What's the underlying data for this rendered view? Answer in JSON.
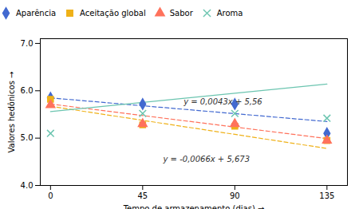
{
  "chart_data": {
    "type": "scatter",
    "xlabel": "Tempo de armazenamento (dias)",
    "ylabel": "Valores hedônicos",
    "x": [
      0,
      45,
      90,
      135
    ],
    "series": [
      {
        "name": "Aparência",
        "marker": "diamond",
        "values": [
          5.85,
          5.72,
          5.72,
          5.1
        ],
        "trend": {
          "x": [
            0,
            135
          ],
          "values": [
            5.85,
            5.3505
          ],
          "line_style": "dashed"
        }
      },
      {
        "name": "Aceitação global",
        "marker": "square",
        "values": [
          5.82,
          5.28,
          5.25,
          4.95
        ],
        "trend": {
          "x": [
            0,
            135
          ],
          "values": [
            5.673,
            4.782
          ],
          "line_style": "dashed"
        }
      },
      {
        "name": "Sabor",
        "marker": "triangle",
        "values": [
          5.7,
          5.3,
          5.3,
          4.95
        ],
        "trend": {
          "x": [
            0,
            135
          ],
          "values": [
            5.72,
            4.991
          ],
          "line_style": "dashed"
        }
      },
      {
        "name": "Aroma",
        "marker": "x",
        "values": [
          5.1,
          5.52,
          5.52,
          5.42
        ],
        "trend": {
          "x": [
            0,
            135
          ],
          "values": [
            5.56,
            6.1405
          ],
          "line_style": "solid"
        }
      }
    ],
    "annotations": [
      {
        "text": "y = 0,0043x + 5,56",
        "x": 65,
        "y": 5.76
      },
      {
        "text": "y = -0,0066x + 5,673",
        "x": 55,
        "y": 4.55
      }
    ],
    "xlim": [
      -5,
      145
    ],
    "xticks": [
      0,
      45,
      90,
      135
    ],
    "ylim": [
      4.0,
      7.1
    ],
    "yticks": [
      4,
      5,
      6,
      7
    ],
    "grid": false,
    "legend": "top"
  }
}
